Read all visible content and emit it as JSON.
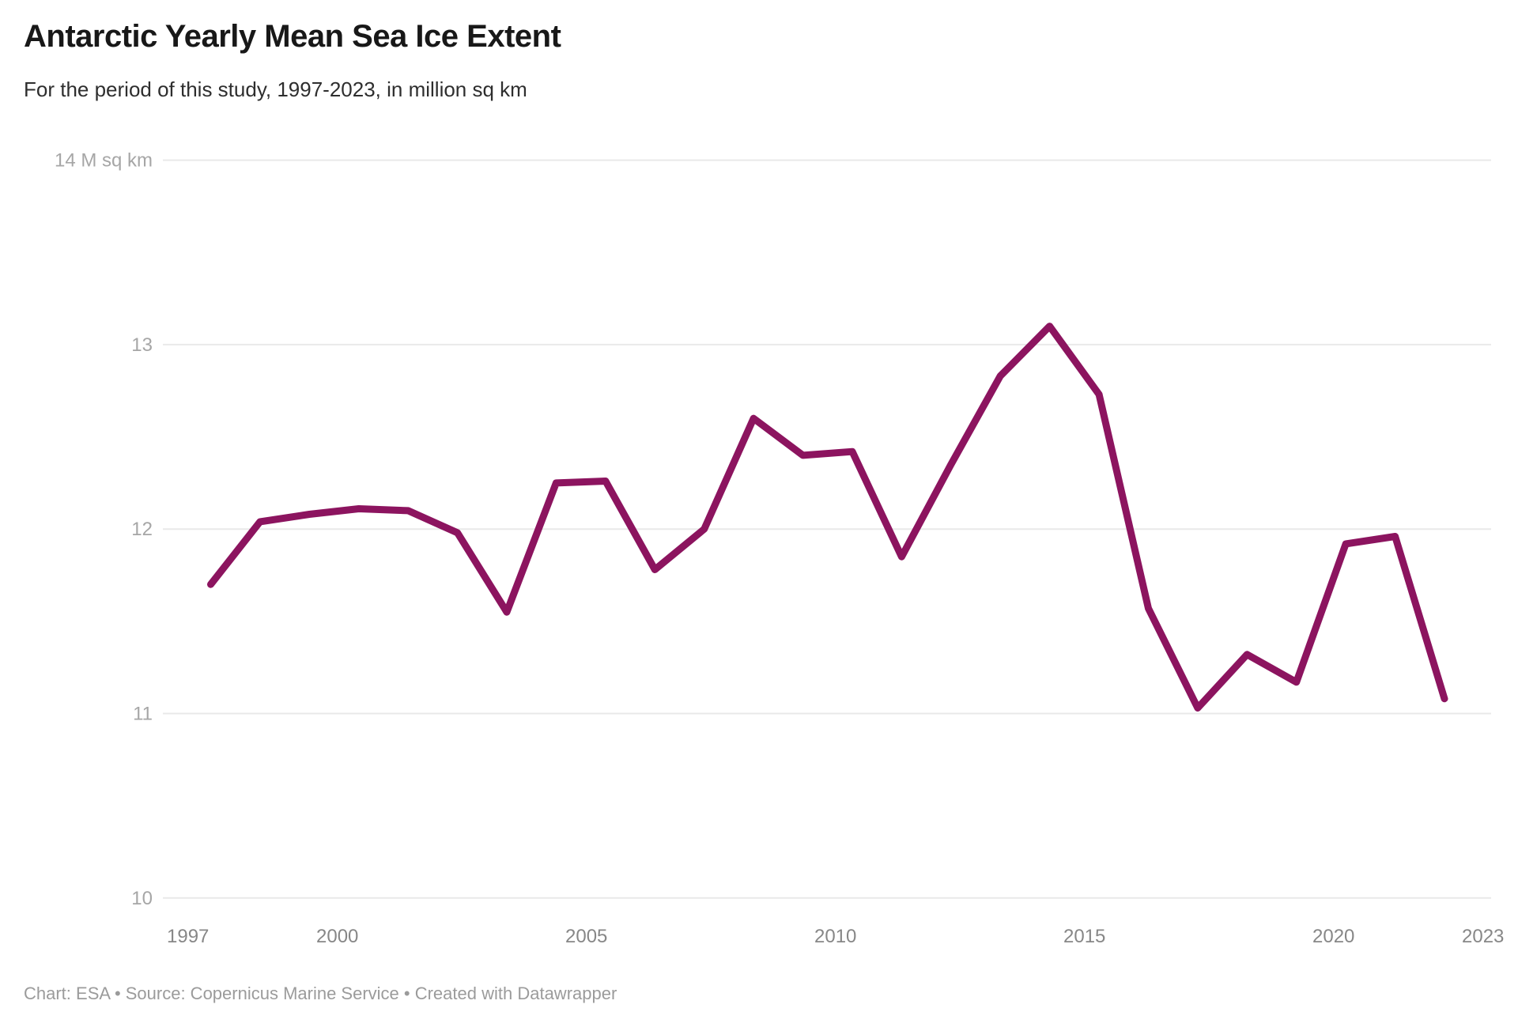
{
  "header": {
    "title": "Antarctic Yearly Mean Sea Ice Extent",
    "subtitle": "For the period of this study, 1997-2023, in million sq km"
  },
  "footer": {
    "text": "Chart: ESA • Source: Copernicus Marine Service • Created with Datawrapper"
  },
  "chart_data": {
    "type": "line",
    "title": "Antarctic Yearly Mean Sea Ice Extent",
    "subtitle": "For the period of this study, 1997-2023, in million sq km",
    "series_name": "Antarctic yearly mean sea ice extent (million sq km)",
    "x": [
      1997,
      1998,
      1999,
      2000,
      2001,
      2002,
      2003,
      2004,
      2005,
      2006,
      2007,
      2008,
      2009,
      2010,
      2011,
      2012,
      2013,
      2014,
      2015,
      2016,
      2017,
      2018,
      2019,
      2020,
      2021,
      2022
    ],
    "values": [
      11.7,
      12.04,
      12.08,
      12.11,
      12.1,
      11.98,
      11.55,
      12.25,
      12.26,
      11.78,
      12.0,
      12.6,
      12.4,
      12.42,
      11.85,
      12.35,
      12.83,
      13.1,
      12.73,
      11.57,
      11.03,
      11.32,
      11.17,
      11.92,
      11.96,
      11.08
    ],
    "xlabel": "",
    "ylabel": "M sq km",
    "ylim": [
      10,
      14
    ],
    "xlim": [
      1997,
      2023
    ],
    "yticks": [
      10,
      11,
      12,
      13,
      14
    ],
    "ytick_top_label": "14 M sq km",
    "xticks": [
      1997,
      2000,
      2005,
      2010,
      2015,
      2020,
      2023
    ],
    "grid": true,
    "legend_position": "none",
    "line_color": "#8c145f",
    "grid_color": "#e9e9e9",
    "axis_label_color": "#a6a6a6"
  }
}
